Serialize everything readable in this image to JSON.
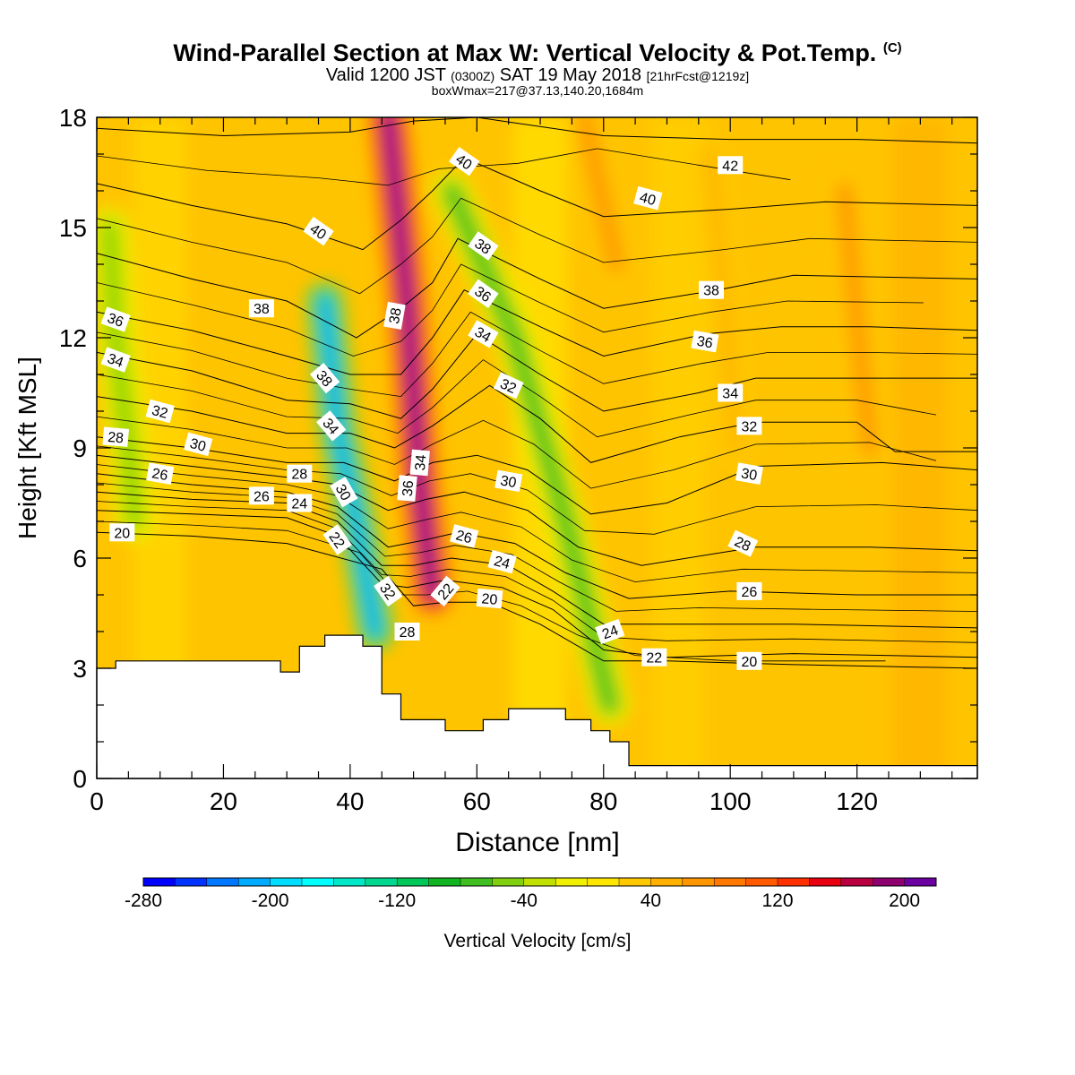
{
  "title": {
    "main": "Wind-Parallel Section at Max W: Vertical Velocity & Pot.Temp.",
    "main_mark": "(C)",
    "valid_a": "Valid 1200 JST",
    "valid_b": "(0300Z)",
    "valid_c": "SAT 19 May 2018",
    "valid_d": "[21hrFcst@1219z]",
    "box": "boxWmax=217@37.13,140.20,1684m"
  },
  "chart_data": {
    "type": "heatmap",
    "xlabel": "Distance [nm]",
    "ylabel": "Height [Kft MSL]",
    "xlim": [
      0,
      139
    ],
    "ylim": [
      0,
      18
    ],
    "x_ticks": [
      0,
      20,
      40,
      60,
      80,
      100,
      120
    ],
    "y_ticks": [
      0,
      3,
      6,
      9,
      12,
      15,
      18
    ],
    "colorbar": {
      "label": "Vertical Velocity [cm/s]",
      "tick_labels": [
        "-280",
        "-200",
        "-120",
        "-40",
        "40",
        "120",
        "200"
      ],
      "colors": [
        "#0000ff",
        "#0033ff",
        "#0077ff",
        "#00aaff",
        "#00ddff",
        "#00ffff",
        "#00e8c8",
        "#00d890",
        "#00c858",
        "#10b420",
        "#40c020",
        "#80d010",
        "#c0e000",
        "#f0f000",
        "#ffe600",
        "#ffc800",
        "#ffb000",
        "#ff9600",
        "#ff7800",
        "#ff5a00",
        "#ff3000",
        "#e80010",
        "#b80040",
        "#8c0070",
        "#6a00a0"
      ]
    },
    "wind_field": [
      {
        "kind": "downdraft",
        "path": [
          [
            2,
            15
          ],
          [
            3,
            12
          ],
          [
            5,
            9
          ],
          [
            6,
            7
          ]
        ],
        "strength": -60
      },
      {
        "kind": "downdraft",
        "path": [
          [
            36,
            13
          ],
          [
            38,
            9.5
          ],
          [
            41,
            7
          ],
          [
            44,
            4
          ]
        ],
        "strength": -220
      },
      {
        "kind": "updraft",
        "path": [
          [
            46,
            18
          ],
          [
            49,
            13
          ],
          [
            51,
            8
          ],
          [
            53,
            5
          ]
        ],
        "strength": 200
      },
      {
        "kind": "downdraft",
        "path": [
          [
            56,
            16
          ],
          [
            66,
            12
          ],
          [
            74,
            7
          ],
          [
            81,
            2
          ]
        ],
        "strength": -90
      },
      {
        "kind": "updraft",
        "path": [
          [
            77,
            18
          ],
          [
            82,
            14
          ]
        ],
        "strength": 60
      },
      {
        "kind": "updraft",
        "path": [
          [
            97,
            17
          ],
          [
            101,
            9
          ]
        ],
        "strength": 40
      },
      {
        "kind": "updraft",
        "path": [
          [
            118,
            16
          ],
          [
            122,
            9
          ]
        ],
        "strength": 50
      }
    ],
    "terrain": [
      [
        0,
        3
      ],
      [
        3,
        3
      ],
      [
        3,
        3.2
      ],
      [
        29,
        3.2
      ],
      [
        29,
        2.9
      ],
      [
        32,
        2.9
      ],
      [
        32,
        3.6
      ],
      [
        36,
        3.6
      ],
      [
        36,
        3.9
      ],
      [
        42,
        3.9
      ],
      [
        42,
        3.6
      ],
      [
        45,
        3.6
      ],
      [
        45,
        2.3
      ],
      [
        48,
        2.3
      ],
      [
        48,
        1.6
      ],
      [
        55,
        1.6
      ],
      [
        55,
        1.3
      ],
      [
        61,
        1.3
      ],
      [
        61,
        1.6
      ],
      [
        65,
        1.6
      ],
      [
        65,
        1.9
      ],
      [
        74,
        1.9
      ],
      [
        74,
        1.6
      ],
      [
        78,
        1.6
      ],
      [
        78,
        1.3
      ],
      [
        81,
        1.3
      ],
      [
        81,
        1.0
      ],
      [
        84,
        1.0
      ],
      [
        84,
        0.35
      ],
      [
        139,
        0.35
      ]
    ],
    "isentropes": [
      {
        "value": 20,
        "pts": [
          [
            0,
            6.7
          ],
          [
            15,
            6.6
          ],
          [
            30,
            6.4
          ],
          [
            45,
            5.7
          ],
          [
            50,
            4.7
          ],
          [
            55,
            4.8
          ],
          [
            62,
            4.8
          ],
          [
            70,
            4.2
          ],
          [
            80,
            3.2
          ],
          [
            90,
            3.2
          ],
          [
            110,
            3.1
          ],
          [
            139,
            3.0
          ]
        ]
      },
      {
        "value": 22,
        "pts": [
          [
            0,
            7.3
          ],
          [
            15,
            7.2
          ],
          [
            30,
            7.1
          ],
          [
            38,
            6.6
          ],
          [
            45,
            5.3
          ],
          [
            49,
            5.2
          ],
          [
            55,
            5.4
          ],
          [
            64,
            5.2
          ],
          [
            72,
            4.6
          ],
          [
            80,
            3.5
          ],
          [
            90,
            3.3
          ],
          [
            110,
            3.4
          ],
          [
            139,
            3.3
          ]
        ]
      },
      {
        "value": 24,
        "pts": [
          [
            0,
            7.8
          ],
          [
            15,
            7.6
          ],
          [
            30,
            7.5
          ],
          [
            38,
            7.0
          ],
          [
            45,
            5.8
          ],
          [
            50,
            5.8
          ],
          [
            56,
            6.0
          ],
          [
            65,
            5.8
          ],
          [
            72,
            5.1
          ],
          [
            80,
            4.2
          ],
          [
            90,
            4.2
          ],
          [
            110,
            4.2
          ],
          [
            139,
            4.1
          ]
        ]
      },
      {
        "value": 26,
        "pts": [
          [
            0,
            8.3
          ],
          [
            15,
            8.0
          ],
          [
            30,
            7.8
          ],
          [
            38,
            7.4
          ],
          [
            46,
            6.3
          ],
          [
            52,
            6.5
          ],
          [
            57,
            6.7
          ],
          [
            66,
            6.4
          ],
          [
            74,
            5.6
          ],
          [
            84,
            4.9
          ],
          [
            100,
            5.1
          ],
          [
            120,
            5.0
          ],
          [
            139,
            5.0
          ]
        ]
      },
      {
        "value": 28,
        "pts": [
          [
            0,
            8.8
          ],
          [
            15,
            8.5
          ],
          [
            30,
            8.2
          ],
          [
            38,
            8.0
          ],
          [
            46,
            7.3
          ],
          [
            52,
            7.6
          ],
          [
            58,
            7.8
          ],
          [
            68,
            7.3
          ],
          [
            76,
            6.3
          ],
          [
            86,
            5.8
          ],
          [
            104,
            6.3
          ],
          [
            122,
            6.3
          ],
          [
            139,
            6.2
          ]
        ]
      },
      {
        "value": 30,
        "pts": [
          [
            0,
            9.3
          ],
          [
            15,
            9.0
          ],
          [
            30,
            8.6
          ],
          [
            39,
            8.6
          ],
          [
            47,
            8.1
          ],
          [
            53,
            8.6
          ],
          [
            60,
            8.8
          ],
          [
            68,
            8.4
          ],
          [
            78,
            7.2
          ],
          [
            90,
            7.5
          ],
          [
            104,
            8.5
          ],
          [
            124,
            8.6
          ],
          [
            139,
            8.4
          ]
        ]
      },
      {
        "value": 32,
        "pts": [
          [
            0,
            10.4
          ],
          [
            15,
            10.0
          ],
          [
            30,
            9.4
          ],
          [
            40,
            9.4
          ],
          [
            47,
            9.0
          ],
          [
            53,
            9.6
          ],
          [
            62,
            10.7
          ],
          [
            70,
            9.8
          ],
          [
            78,
            8.6
          ],
          [
            92,
            9.3
          ],
          [
            104,
            9.7
          ],
          [
            120,
            9.7
          ],
          [
            126,
            8.9
          ],
          [
            139,
            8.9
          ]
        ]
      },
      {
        "value": 34,
        "pts": [
          [
            0,
            11.6
          ],
          [
            15,
            11.1
          ],
          [
            30,
            10.3
          ],
          [
            40,
            10.2
          ],
          [
            48,
            9.8
          ],
          [
            53,
            10.6
          ],
          [
            60,
            12.1
          ],
          [
            70,
            11.0
          ],
          [
            80,
            10.0
          ],
          [
            95,
            10.5
          ],
          [
            104,
            10.9
          ],
          [
            120,
            10.9
          ],
          [
            139,
            10.9
          ]
        ]
      },
      {
        "value": 36,
        "pts": [
          [
            0,
            12.7
          ],
          [
            15,
            12.2
          ],
          [
            30,
            11.5
          ],
          [
            40,
            11.0
          ],
          [
            48,
            11.0
          ],
          [
            53,
            12.0
          ],
          [
            58,
            13.3
          ],
          [
            70,
            12.3
          ],
          [
            80,
            11.5
          ],
          [
            96,
            12.1
          ],
          [
            108,
            12.3
          ],
          [
            122,
            12.3
          ],
          [
            139,
            12.2
          ]
        ]
      },
      {
        "value": 38,
        "pts": [
          [
            0,
            14.3
          ],
          [
            15,
            13.6
          ],
          [
            30,
            13.0
          ],
          [
            41,
            12.0
          ],
          [
            48,
            12.8
          ],
          [
            53,
            13.5
          ],
          [
            57,
            14.7
          ],
          [
            70,
            13.6
          ],
          [
            80,
            12.8
          ],
          [
            98,
            13.3
          ],
          [
            110,
            13.7
          ],
          [
            139,
            13.6
          ]
        ]
      },
      {
        "value": 40,
        "pts": [
          [
            0,
            16.2
          ],
          [
            15,
            15.6
          ],
          [
            30,
            15.1
          ],
          [
            42,
            14.4
          ],
          [
            48,
            15.2
          ],
          [
            53,
            16.0
          ],
          [
            58,
            16.9
          ],
          [
            70,
            16.0
          ],
          [
            80,
            15.3
          ],
          [
            100,
            15.5
          ],
          [
            115,
            15.7
          ],
          [
            139,
            15.6
          ]
        ]
      },
      {
        "value": 42,
        "pts": [
          [
            0,
            17.7
          ],
          [
            20,
            17.5
          ],
          [
            40,
            17.6
          ],
          [
            50,
            17.9
          ],
          [
            60,
            18.0
          ],
          [
            80,
            17.5
          ],
          [
            100,
            17.4
          ],
          [
            120,
            17.4
          ],
          [
            139,
            17.3
          ]
        ]
      }
    ],
    "contour_labels": [
      {
        "text": "40",
        "x": 35,
        "y": 14.9,
        "rot": 35
      },
      {
        "text": "40",
        "x": 58,
        "y": 16.8,
        "rot": 35
      },
      {
        "text": "42",
        "x": 100,
        "y": 16.7,
        "rot": 0
      },
      {
        "text": "40",
        "x": 87,
        "y": 15.8,
        "rot": 15
      },
      {
        "text": "38",
        "x": 61,
        "y": 14.5,
        "rot": 35
      },
      {
        "text": "38",
        "x": 26,
        "y": 12.8,
        "rot": 0
      },
      {
        "text": "38",
        "x": 47,
        "y": 12.6,
        "rot": -80
      },
      {
        "text": "36",
        "x": 61,
        "y": 13.2,
        "rot": 35
      },
      {
        "text": "38",
        "x": 97,
        "y": 13.3,
        "rot": 0
      },
      {
        "text": "36",
        "x": 3,
        "y": 12.5,
        "rot": 20
      },
      {
        "text": "34",
        "x": 61,
        "y": 12.1,
        "rot": 30
      },
      {
        "text": "36",
        "x": 96,
        "y": 11.9,
        "rot": 10
      },
      {
        "text": "34",
        "x": 3,
        "y": 11.4,
        "rot": 20
      },
      {
        "text": "38",
        "x": 36,
        "y": 10.9,
        "rot": 50
      },
      {
        "text": "32",
        "x": 65,
        "y": 10.7,
        "rot": 25
      },
      {
        "text": "34",
        "x": 100,
        "y": 10.5,
        "rot": 0
      },
      {
        "text": "32",
        "x": 10,
        "y": 10.0,
        "rot": 15
      },
      {
        "text": "34",
        "x": 37,
        "y": 9.6,
        "rot": 50
      },
      {
        "text": "32",
        "x": 103,
        "y": 9.6,
        "rot": 0
      },
      {
        "text": "28",
        "x": 3,
        "y": 9.3,
        "rot": 5
      },
      {
        "text": "30",
        "x": 16,
        "y": 9.1,
        "rot": 15
      },
      {
        "text": "34",
        "x": 51,
        "y": 8.6,
        "rot": -85
      },
      {
        "text": "26",
        "x": 10,
        "y": 8.3,
        "rot": 10
      },
      {
        "text": "28",
        "x": 32,
        "y": 8.3,
        "rot": 0
      },
      {
        "text": "30",
        "x": 103,
        "y": 8.3,
        "rot": 10
      },
      {
        "text": "30",
        "x": 65,
        "y": 8.1,
        "rot": 10
      },
      {
        "text": "36",
        "x": 49,
        "y": 7.9,
        "rot": -85
      },
      {
        "text": "30",
        "x": 39,
        "y": 7.8,
        "rot": 60
      },
      {
        "text": "26",
        "x": 26,
        "y": 7.7,
        "rot": 0
      },
      {
        "text": "24",
        "x": 32,
        "y": 7.5,
        "rot": 0
      },
      {
        "text": "20",
        "x": 4,
        "y": 6.7,
        "rot": 0
      },
      {
        "text": "26",
        "x": 58,
        "y": 6.6,
        "rot": 15
      },
      {
        "text": "22",
        "x": 38,
        "y": 6.5,
        "rot": 55
      },
      {
        "text": "28",
        "x": 102,
        "y": 6.4,
        "rot": 25
      },
      {
        "text": "24",
        "x": 64,
        "y": 5.9,
        "rot": 15
      },
      {
        "text": "32",
        "x": 46,
        "y": 5.1,
        "rot": 55
      },
      {
        "text": "22",
        "x": 55,
        "y": 5.1,
        "rot": -50
      },
      {
        "text": "26",
        "x": 103,
        "y": 5.1,
        "rot": 0
      },
      {
        "text": "20",
        "x": 62,
        "y": 4.9,
        "rot": 5
      },
      {
        "text": "28",
        "x": 49,
        "y": 4.0,
        "rot": 0
      },
      {
        "text": "24",
        "x": 81,
        "y": 4.0,
        "rot": -20
      },
      {
        "text": "22",
        "x": 88,
        "y": 3.3,
        "rot": 0
      },
      {
        "text": "20",
        "x": 103,
        "y": 3.2,
        "rot": 0
      }
    ]
  }
}
